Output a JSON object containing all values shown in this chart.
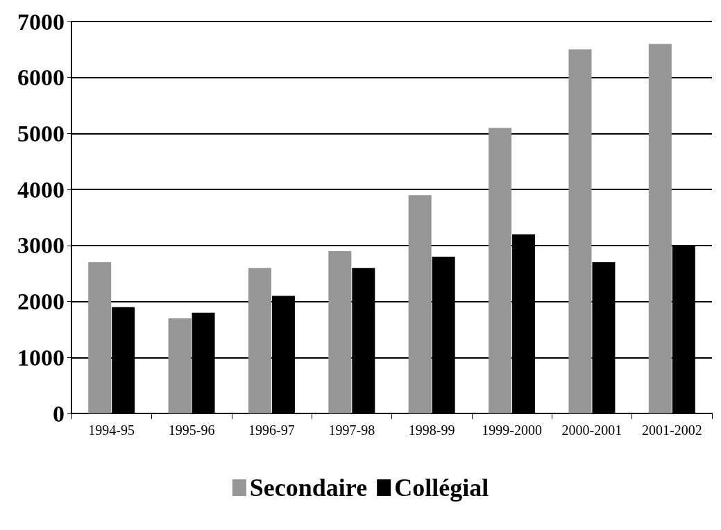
{
  "chart_data": {
    "type": "bar",
    "categories": [
      "1994-95",
      "1995-96",
      "1996-97",
      "1997-98",
      "1998-99",
      "1999-2000",
      "2000-2001",
      "2001-2002"
    ],
    "series": [
      {
        "name": "Secondaire",
        "color": "#969696",
        "values": [
          2700,
          1700,
          2600,
          2900,
          3900,
          5100,
          6500,
          6600
        ]
      },
      {
        "name": "Collégial",
        "color": "#000000",
        "values": [
          1900,
          1800,
          2100,
          2600,
          2800,
          3200,
          2700,
          3000
        ]
      }
    ],
    "ylim": [
      0,
      7000
    ],
    "yticks": [
      0,
      1000,
      2000,
      3000,
      4000,
      5000,
      6000,
      7000
    ],
    "grid": "y",
    "legend": "bottom"
  }
}
